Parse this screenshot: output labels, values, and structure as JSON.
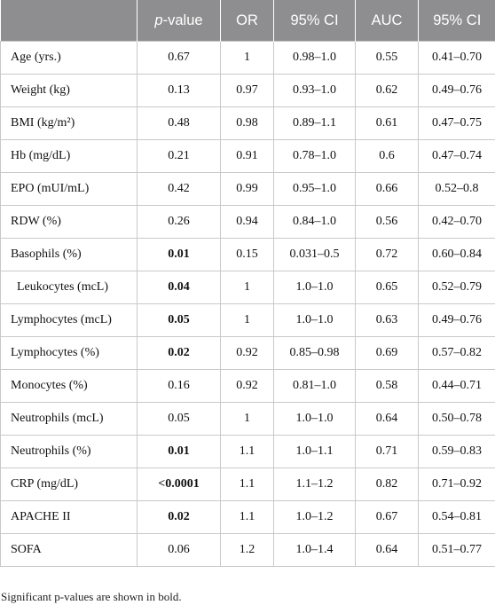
{
  "table": {
    "headers": [
      {
        "lead": "",
        "ital": "",
        "rest": ""
      },
      {
        "lead": "",
        "ital": "p",
        "rest": "-value"
      },
      {
        "lead": "OR",
        "ital": "",
        "rest": ""
      },
      {
        "lead": "95% CI",
        "ital": "",
        "rest": ""
      },
      {
        "lead": "AUC",
        "ital": "",
        "rest": ""
      },
      {
        "lead": "95% CI",
        "ital": "",
        "rest": ""
      }
    ],
    "rows": [
      {
        "variable": "Age (yrs.)",
        "p": "0.67",
        "p_bold": false,
        "or": "1",
        "ci": "0.98–1.0",
        "auc": "0.55",
        "auc_ci": "0.41–0.70"
      },
      {
        "variable": "Weight (kg)",
        "p": "0.13",
        "p_bold": false,
        "or": "0.97",
        "ci": "0.93–1.0",
        "auc": "0.62",
        "auc_ci": "0.49–0.76"
      },
      {
        "variable": "BMI (kg/m²)",
        "p": "0.48",
        "p_bold": false,
        "or": "0.98",
        "ci": "0.89–1.1",
        "auc": "0.61",
        "auc_ci": "0.47–0.75"
      },
      {
        "variable": "Hb (mg/dL)",
        "p": "0.21",
        "p_bold": false,
        "or": "0.91",
        "ci": "0.78–1.0",
        "auc": "0.6",
        "auc_ci": "0.47–0.74"
      },
      {
        "variable": "EPO (mUI/mL)",
        "p": "0.42",
        "p_bold": false,
        "or": "0.99",
        "ci": "0.95–1.0",
        "auc": "0.66",
        "auc_ci": "0.52–0.8"
      },
      {
        "variable": "RDW (%)",
        "p": "0.26",
        "p_bold": false,
        "or": "0.94",
        "ci": "0.84–1.0",
        "auc": "0.56",
        "auc_ci": "0.42–0.70"
      },
      {
        "variable": "Basophils (%)",
        "p": "0.01",
        "p_bold": true,
        "or": "0.15",
        "ci": "0.031–0.5",
        "auc": "0.72",
        "auc_ci": "0.60–0.84"
      },
      {
        "variable": "  Leukocytes (mcL)",
        "p": "0.04",
        "p_bold": true,
        "or": "1",
        "ci": "1.0–1.0",
        "auc": "0.65",
        "auc_ci": "0.52–0.79"
      },
      {
        "variable": "Lymphocytes (mcL)",
        "p": "0.05",
        "p_bold": true,
        "or": "1",
        "ci": "1.0–1.0",
        "auc": "0.63",
        "auc_ci": "0.49–0.76"
      },
      {
        "variable": "Lymphocytes (%)",
        "p": "0.02",
        "p_bold": true,
        "or": "0.92",
        "ci": "0.85–0.98",
        "auc": "0.69",
        "auc_ci": "0.57–0.82"
      },
      {
        "variable": "Monocytes (%)",
        "p": "0.16",
        "p_bold": false,
        "or": "0.92",
        "ci": "0.81–1.0",
        "auc": "0.58",
        "auc_ci": "0.44–0.71"
      },
      {
        "variable": "Neutrophils (mcL)",
        "p": "0.05",
        "p_bold": false,
        "or": "1",
        "ci": "1.0–1.0",
        "auc": "0.64",
        "auc_ci": "0.50–0.78"
      },
      {
        "variable": "Neutrophils (%)",
        "p": "0.01",
        "p_bold": true,
        "or": "1.1",
        "ci": "1.0–1.1",
        "auc": "0.71",
        "auc_ci": "0.59–0.83"
      },
      {
        "variable": "CRP (mg/dL)",
        "p": "<0.0001",
        "p_bold": true,
        "or": "1.1",
        "ci": "1.1–1.2",
        "auc": "0.82",
        "auc_ci": "0.71–0.92"
      },
      {
        "variable": "APACHE II",
        "p": "0.02",
        "p_bold": true,
        "or": "1.1",
        "ci": "1.0–1.2",
        "auc": "0.67",
        "auc_ci": "0.54–0.81"
      },
      {
        "variable": "SOFA",
        "p": "0.06",
        "p_bold": false,
        "or": "1.2",
        "ci": "1.0–1.4",
        "auc": "0.64",
        "auc_ci": "0.51–0.77"
      }
    ]
  },
  "footnote": "Significant p-values are shown in bold.",
  "colors": {
    "header_bg": "#8e8e90",
    "header_text": "#ffffff",
    "grid": "#c9c9c9"
  }
}
